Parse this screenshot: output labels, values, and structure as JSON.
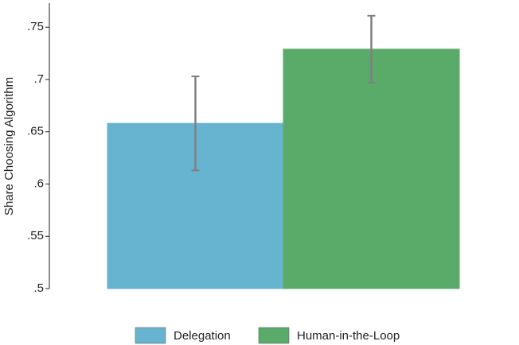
{
  "chart_data": {
    "type": "bar",
    "y_label": "Share Choosing Algorithm",
    "categories": [
      null
    ],
    "series": [
      {
        "name": "Delegation",
        "color": "#67b4d0",
        "values": [
          0.658
        ],
        "errors": [
          0.045
        ]
      },
      {
        "name": "Human-in-the-Loop",
        "color": "#5aab6a",
        "values": [
          0.729
        ],
        "errors": [
          0.032
        ]
      }
    ],
    "ylim": [
      0.5,
      0.773
    ],
    "yticks": [
      {
        "value": 0.5,
        "label": ".5"
      },
      {
        "value": 0.55,
        "label": ".55"
      },
      {
        "value": 0.6,
        "label": ".6"
      },
      {
        "value": 0.65,
        "label": ".65"
      },
      {
        "value": 0.7,
        "label": ".7"
      },
      {
        "value": 0.75,
        "label": ".75"
      }
    ],
    "error_color": "#808080",
    "grid": false,
    "legend": "bottom"
  }
}
